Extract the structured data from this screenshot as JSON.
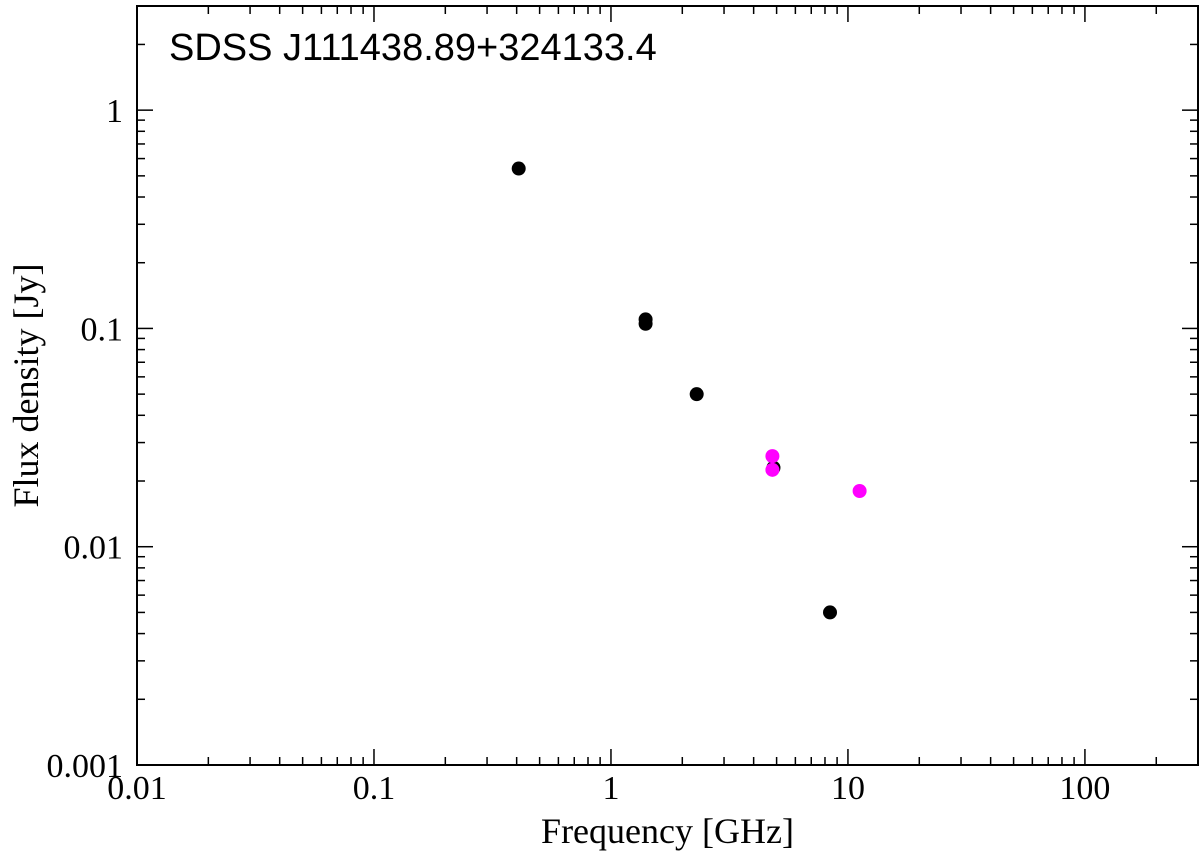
{
  "chart_data": {
    "type": "scatter",
    "title": "SDSS J111438.89+324133.4",
    "xlabel": "Frequency [GHz]",
    "ylabel": "Flux density [Jy]",
    "xscale": "log",
    "yscale": "log",
    "xlim": [
      0.01,
      300
    ],
    "ylim": [
      0.001,
      3
    ],
    "grid": false,
    "x_ticks": [
      {
        "value": 0.01,
        "label": "0.01"
      },
      {
        "value": 0.1,
        "label": "0.1"
      },
      {
        "value": 1,
        "label": "1"
      },
      {
        "value": 10,
        "label": "10"
      },
      {
        "value": 100,
        "label": "100"
      }
    ],
    "y_ticks": [
      {
        "value": 0.001,
        "label": "0.001"
      },
      {
        "value": 0.01,
        "label": "0.01"
      },
      {
        "value": 0.1,
        "label": "0.1"
      },
      {
        "value": 1,
        "label": "1"
      }
    ],
    "series": [
      {
        "color": "#000000",
        "points": [
          {
            "x": 0.408,
            "y": 0.54
          },
          {
            "x": 1.4,
            "y": 0.11
          },
          {
            "x": 1.4,
            "y": 0.105
          },
          {
            "x": 2.3,
            "y": 0.05
          },
          {
            "x": 4.85,
            "y": 0.023
          },
          {
            "x": 8.4,
            "y": 0.005
          }
        ]
      },
      {
        "color": "#ff00ff",
        "points": [
          {
            "x": 4.8,
            "y": 0.026
          },
          {
            "x": 4.8,
            "y": 0.0225
          },
          {
            "x": 11.2,
            "y": 0.018
          }
        ]
      }
    ]
  }
}
